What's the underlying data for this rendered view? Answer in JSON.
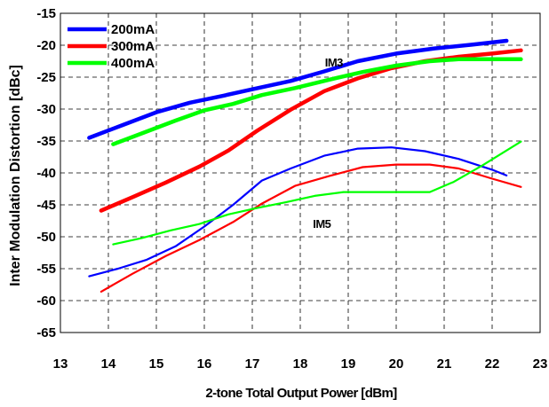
{
  "chart_data": {
    "type": "line",
    "xlabel": "2-tone Total Output Power [dBm]",
    "ylabel": "Inter Modulation Distortion [dBc]",
    "xlim": [
      13,
      23
    ],
    "ylim": [
      -65,
      -15
    ],
    "xticks": [
      13,
      14,
      15,
      16,
      17,
      18,
      19,
      20,
      21,
      22,
      23
    ],
    "yticks": [
      -15,
      -20,
      -25,
      -30,
      -35,
      -40,
      -45,
      -50,
      -55,
      -60,
      -65
    ],
    "grid": true,
    "legend": {
      "placement": "top-left",
      "entries": [
        {
          "label": "200mA",
          "color": "#0000ff"
        },
        {
          "label": "300mA",
          "color": "#ff0000"
        },
        {
          "label": "400mA",
          "color": "#00ff00"
        }
      ]
    },
    "annotations": [
      {
        "text": "IM3",
        "x": 18.7,
        "y": -23.3
      },
      {
        "text": "IM5",
        "x": 18.45,
        "y": -48.6
      }
    ],
    "series": [
      {
        "name": "200mA",
        "group": "IM3",
        "color": "#0000ff",
        "x": [
          13.6,
          14.3,
          15.0,
          15.7,
          16.4,
          17.0,
          17.8,
          18.5,
          19.2,
          20.0,
          20.8,
          21.6,
          22.3
        ],
        "y": [
          -34.5,
          -32.5,
          -30.5,
          -29.0,
          -27.9,
          -26.9,
          -25.6,
          -24.1,
          -22.5,
          -21.3,
          -20.5,
          -19.9,
          -19.3
        ]
      },
      {
        "name": "300mA",
        "group": "IM3",
        "color": "#ff0000",
        "x": [
          13.85,
          14.5,
          15.2,
          15.9,
          16.5,
          17.1,
          17.8,
          18.5,
          19.2,
          19.9,
          20.6,
          21.3,
          22.0,
          22.6
        ],
        "y": [
          -45.9,
          -43.8,
          -41.5,
          -39.0,
          -36.5,
          -33.4,
          -30.1,
          -27.2,
          -25.2,
          -23.6,
          -22.5,
          -21.8,
          -21.3,
          -20.8
        ]
      },
      {
        "name": "400mA",
        "group": "IM3",
        "color": "#00ff00",
        "x": [
          14.1,
          14.7,
          15.4,
          16.0,
          16.6,
          17.2,
          17.9,
          18.6,
          19.3,
          20.0,
          20.7,
          21.3,
          21.9,
          22.6
        ],
        "y": [
          -35.5,
          -33.8,
          -31.8,
          -30.2,
          -29.2,
          -27.8,
          -26.7,
          -25.4,
          -24.2,
          -23.2,
          -22.5,
          -22.2,
          -22.2,
          -22.2
        ]
      },
      {
        "name": "200mA",
        "group": "IM5",
        "color": "#0000ff",
        "x": [
          13.6,
          14.2,
          14.8,
          15.4,
          16.0,
          16.6,
          17.2,
          17.8,
          18.5,
          19.2,
          19.9,
          20.6,
          21.3,
          22.0,
          22.3
        ],
        "y": [
          -56.2,
          -55.0,
          -53.6,
          -51.5,
          -48.4,
          -45.0,
          -41.2,
          -39.3,
          -37.3,
          -36.2,
          -36.0,
          -36.6,
          -37.8,
          -39.5,
          -40.4
        ]
      },
      {
        "name": "300mA",
        "group": "IM5",
        "color": "#ff0000",
        "x": [
          13.85,
          14.5,
          15.2,
          15.9,
          16.6,
          17.2,
          17.9,
          18.6,
          19.3,
          20.0,
          20.7,
          21.3,
          22.0,
          22.6
        ],
        "y": [
          -58.6,
          -55.8,
          -53.0,
          -50.5,
          -47.7,
          -44.8,
          -42.0,
          -40.5,
          -39.1,
          -38.7,
          -38.7,
          -39.3,
          -40.9,
          -42.2
        ]
      },
      {
        "name": "400mA",
        "group": "IM5",
        "color": "#00ff00",
        "x": [
          14.1,
          14.7,
          15.3,
          15.9,
          16.5,
          17.1,
          17.7,
          18.3,
          18.9,
          19.5,
          20.1,
          20.7,
          21.2,
          21.8,
          22.6
        ],
        "y": [
          -51.2,
          -50.2,
          -49.0,
          -48.0,
          -46.5,
          -45.5,
          -44.6,
          -43.6,
          -43.0,
          -43.0,
          -43.0,
          -43.0,
          -41.4,
          -38.8,
          -35.1
        ]
      }
    ]
  }
}
